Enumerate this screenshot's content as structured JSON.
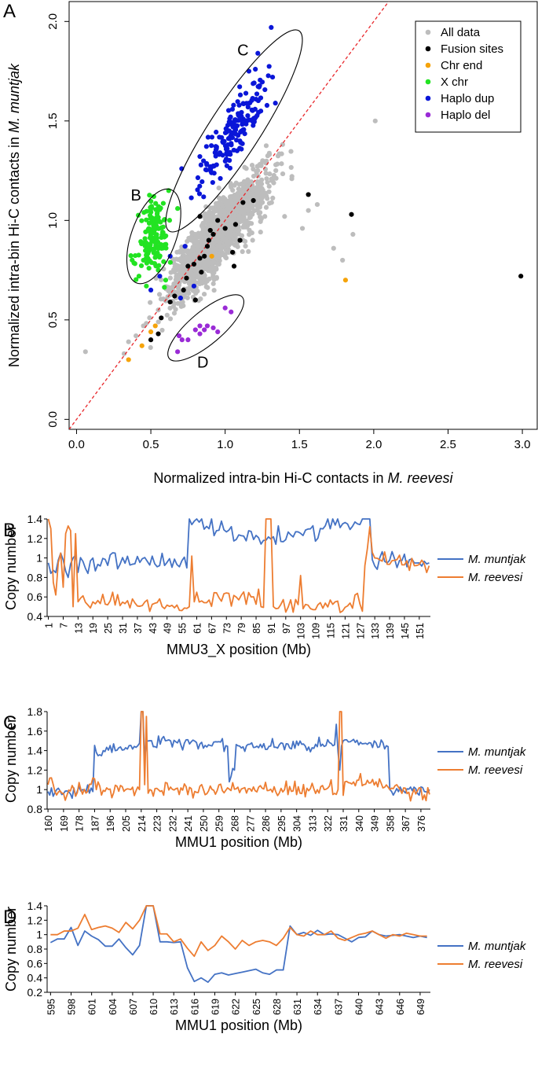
{
  "chart_data": [
    {
      "type": "scatter",
      "panel_label": "A",
      "xlabel_prefix": "Normalized intra-bin Hi-C contacts in ",
      "xlabel_species": "M. reevesi",
      "ylabel_prefix": "Normalized intra-bin Hi-C contacts in ",
      "ylabel_species": "M. muntjak",
      "xlim": [
        -0.05,
        3.1
      ],
      "ylim": [
        -0.05,
        2.1
      ],
      "xticks": [
        0.0,
        0.5,
        1.0,
        1.5,
        2.0,
        2.5,
        3.0
      ],
      "yticks": [
        0.0,
        0.5,
        1.0,
        1.5,
        2.0
      ],
      "xtick_labels": [
        "0.0",
        "0.5",
        "1.0",
        "1.5",
        "2.0",
        "2.5",
        "3.0"
      ],
      "ytick_labels": [
        "0.0",
        "0.5",
        "1.0",
        "1.5",
        "2.0"
      ],
      "diagonal": "y = x",
      "legend": [
        {
          "label": "All data",
          "color": "#bdbdbd"
        },
        {
          "label": "Fusion sites",
          "color": "#000000"
        },
        {
          "label": "Chr end",
          "color": "#f5a30a"
        },
        {
          "label": "X chr",
          "color": "#22e322"
        },
        {
          "label": "Haplo dup",
          "color": "#0a16d8"
        },
        {
          "label": "Haplo del",
          "color": "#9a2bd6"
        }
      ],
      "annotations": [
        "B",
        "C",
        "D"
      ],
      "series": [
        {
          "name": "All data (main cluster)",
          "cluster": {
            "cx": 0.95,
            "cy": 0.92,
            "sx": 0.16,
            "rho": 0.86,
            "ratio": 0.95,
            "n": 1500
          },
          "points": [
            [
              0.06,
              0.34
            ],
            [
              0.32,
              0.33
            ],
            [
              0.35,
              0.39
            ],
            [
              0.4,
              0.42
            ],
            [
              0.45,
              0.47
            ],
            [
              0.55,
              0.55
            ],
            [
              0.6,
              0.6
            ],
            [
              0.65,
              0.64
            ],
            [
              1.56,
              1.05
            ],
            [
              1.62,
              1.08
            ],
            [
              1.73,
              0.86
            ],
            [
              1.79,
              0.8
            ],
            [
              1.86,
              0.93
            ],
            [
              2.01,
              1.5
            ],
            [
              1.52,
              0.96
            ],
            [
              1.4,
              1.02
            ]
          ]
        },
        {
          "name": "Fusion sites",
          "points": [
            [
              0.5,
              0.4
            ],
            [
              0.55,
              0.43
            ],
            [
              0.57,
              0.51
            ],
            [
              0.63,
              0.59
            ],
            [
              0.66,
              0.62
            ],
            [
              0.72,
              0.65
            ],
            [
              0.74,
              0.71
            ],
            [
              0.75,
              0.77
            ],
            [
              0.8,
              0.6
            ],
            [
              0.79,
              0.78
            ],
            [
              0.83,
              0.81
            ],
            [
              0.84,
              0.74
            ],
            [
              0.86,
              0.82
            ],
            [
              0.88,
              0.87
            ],
            [
              0.89,
              0.9
            ],
            [
              0.9,
              0.95
            ],
            [
              0.92,
              0.93
            ],
            [
              0.95,
              1.0
            ],
            [
              1.0,
              0.96
            ],
            [
              1.06,
              0.77
            ],
            [
              1.05,
              0.84
            ],
            [
              1.07,
              0.98
            ],
            [
              1.1,
              0.9
            ],
            [
              0.83,
              1.02
            ],
            [
              1.12,
              1.09
            ],
            [
              1.19,
              1.1
            ],
            [
              1.56,
              1.13
            ],
            [
              1.85,
              1.03
            ],
            [
              2.99,
              0.72
            ]
          ]
        },
        {
          "name": "Chr end",
          "points": [
            [
              0.35,
              0.3
            ],
            [
              0.44,
              0.37
            ],
            [
              0.5,
              0.44
            ],
            [
              0.53,
              0.47
            ],
            [
              0.91,
              0.82
            ],
            [
              1.81,
              0.7
            ]
          ]
        },
        {
          "name": "X chr",
          "cluster": {
            "cx": 0.52,
            "cy": 0.91,
            "sx": 0.05,
            "sy": 0.09,
            "rho": 0.2,
            "n": 150
          },
          "points": [
            [
              0.42,
              0.72
            ],
            [
              0.47,
              0.67
            ],
            [
              0.55,
              0.75
            ],
            [
              0.6,
              0.7
            ],
            [
              0.52,
              1.12
            ],
            [
              0.62,
              1.15
            ],
            [
              0.68,
              1.06
            ],
            [
              0.45,
              0.8
            ]
          ]
        },
        {
          "name": "Haplo dup",
          "cluster": {
            "cx": 1.06,
            "cy": 1.45,
            "sx": 0.12,
            "sy": 0.13,
            "rho": 0.85,
            "n": 170
          },
          "points": [
            [
              0.5,
              0.65
            ],
            [
              0.56,
              0.72
            ],
            [
              0.63,
              0.82
            ],
            [
              0.73,
              0.87
            ],
            [
              0.79,
              0.67
            ],
            [
              0.7,
              0.61
            ],
            [
              1.31,
              1.97
            ],
            [
              0.9,
              1.27
            ],
            [
              1.22,
              1.84
            ],
            [
              1.16,
              1.75
            ]
          ]
        },
        {
          "name": "Haplo del",
          "points": [
            [
              0.68,
              0.34
            ],
            [
              0.69,
              0.42
            ],
            [
              0.71,
              0.4
            ],
            [
              0.75,
              0.4
            ],
            [
              0.8,
              0.45
            ],
            [
              0.83,
              0.43
            ],
            [
              0.86,
              0.45
            ],
            [
              0.88,
              0.47
            ],
            [
              0.92,
              0.46
            ],
            [
              0.95,
              0.44
            ],
            [
              1.0,
              0.56
            ],
            [
              1.04,
              0.54
            ],
            [
              0.83,
              0.47
            ]
          ]
        }
      ]
    },
    {
      "type": "line",
      "panel_label": "B",
      "xlabel": "MMU3_X position (Mb)",
      "ylabel": "Copy number",
      "ylim": [
        0.4,
        1.4
      ],
      "yticks": [
        0.4,
        0.6,
        0.8,
        1.0,
        1.2,
        1.4
      ],
      "ytick_labels": [
        "0.4",
        "0.6",
        "0.8",
        "1",
        "1.2",
        "1.4"
      ],
      "x_start": 1,
      "x_step": 1,
      "n": 155,
      "tick_every": 6,
      "legend": [
        "M. muntjak",
        "M. reevesi"
      ],
      "series": [
        {
          "name": "M. muntjak",
          "color": "#4472c4",
          "base": 0.95,
          "noise": 0.05,
          "anchors": [
            [
              1,
              0.95
            ],
            [
              4,
              0.85
            ],
            [
              6,
              1.05
            ],
            [
              9,
              0.8
            ],
            [
              11,
              1.0
            ],
            [
              58,
              1.4
            ],
            [
              88,
              1.18
            ],
            [
              120,
              1.35
            ],
            [
              131,
              1.4
            ],
            [
              135,
              1.0
            ],
            [
              155,
              0.95
            ]
          ]
        },
        {
          "name": "M. reevesi",
          "color": "#ed7d31",
          "base": 0.52,
          "noise": 0.04,
          "anchors": [
            [
              1,
              1.4
            ],
            [
              2,
              1.3
            ],
            [
              3,
              0.75
            ],
            [
              4,
              0.62
            ],
            [
              5,
              0.95
            ],
            [
              6,
              1.05
            ],
            [
              7,
              0.7
            ],
            [
              8,
              1.25
            ],
            [
              10,
              1.28
            ],
            [
              11,
              0.5
            ],
            [
              12,
              1.25
            ],
            [
              13,
              0.55
            ],
            [
              58,
              0.5
            ],
            [
              59,
              1.02
            ],
            [
              60,
              0.55
            ],
            [
              83,
              0.6
            ],
            [
              86,
              0.68
            ],
            [
              87,
              0.5
            ],
            [
              89,
              1.4
            ],
            [
              90,
              1.4
            ],
            [
              91,
              1.4
            ],
            [
              92,
              0.5
            ],
            [
              103,
              0.82
            ],
            [
              125,
              0.62
            ],
            [
              129,
              0.92
            ],
            [
              131,
              1.32
            ],
            [
              133,
              1.0
            ],
            [
              155,
              0.92
            ]
          ]
        }
      ]
    },
    {
      "type": "line",
      "panel_label": "C",
      "xlabel": "MMU1 position (Mb)",
      "ylabel": "Copy number",
      "ylim": [
        0.8,
        1.8
      ],
      "yticks": [
        0.8,
        1.0,
        1.2,
        1.4,
        1.6,
        1.8
      ],
      "ytick_labels": [
        "0.8",
        "1",
        "1.2",
        "1.4",
        "1.6",
        "1.8"
      ],
      "x_start": 160,
      "x_step": 1,
      "n": 222,
      "tick_every": 9,
      "legend": [
        "M. muntjak",
        "M. reevesi"
      ],
      "series": [
        {
          "name": "M. muntjak",
          "color": "#4472c4",
          "base": 1.45,
          "noise": 0.03,
          "anchors": [
            [
              160,
              0.98
            ],
            [
              186,
              0.98
            ],
            [
              188,
              1.38
            ],
            [
              212,
              1.45
            ],
            [
              214,
              1.8
            ],
            [
              215,
              1.8
            ],
            [
              216,
              1.3
            ],
            [
              217,
              1.5
            ],
            [
              263,
              1.45
            ],
            [
              265,
              1.08
            ],
            [
              268,
              1.2
            ],
            [
              270,
              1.45
            ],
            [
              325,
              1.45
            ],
            [
              327,
              1.67
            ],
            [
              329,
              1.2
            ],
            [
              331,
              1.5
            ],
            [
              356,
              1.45
            ],
            [
              358,
              1.0
            ],
            [
              381,
              1.0
            ]
          ]
        },
        {
          "name": "M. reevesi",
          "color": "#ed7d31",
          "base": 1.0,
          "noise": 0.035,
          "anchors": [
            [
              160,
              1.05
            ],
            [
              162,
              1.12
            ],
            [
              164,
              0.98
            ],
            [
              183,
              0.98
            ],
            [
              186,
              1.12
            ],
            [
              188,
              1.0
            ],
            [
              213,
              1.0
            ],
            [
              214,
              1.8
            ],
            [
              215,
              1.8
            ],
            [
              216,
              1.05
            ],
            [
              217,
              1.75
            ],
            [
              219,
              1.0
            ],
            [
              328,
              1.0
            ],
            [
              329,
              1.8
            ],
            [
              330,
              1.8
            ],
            [
              332,
              1.08
            ],
            [
              350,
              1.08
            ],
            [
              358,
              1.0
            ],
            [
              381,
              0.95
            ]
          ]
        }
      ]
    },
    {
      "type": "line",
      "panel_label": "D",
      "xlabel": "MMU1 position (Mb)",
      "ylabel": "Copy number",
      "ylim": [
        0.2,
        1.4
      ],
      "yticks": [
        0.2,
        0.4,
        0.6,
        0.8,
        1.0,
        1.2,
        1.4
      ],
      "ytick_labels": [
        "0.2",
        "0.4",
        "0.6",
        "0.8",
        "1",
        "1.2",
        "1.4"
      ],
      "x_start": 595,
      "x_step": 1,
      "n": 56,
      "tick_every": 3,
      "legend": [
        "M. muntjak",
        "M. reevesi"
      ],
      "series": [
        {
          "name": "M. muntjak",
          "color": "#4472c4",
          "values": [
            0.89,
            0.94,
            0.94,
            1.1,
            0.85,
            1.05,
            0.98,
            0.93,
            0.84,
            0.84,
            0.94,
            0.82,
            0.72,
            0.85,
            1.4,
            1.4,
            0.9,
            0.9,
            0.89,
            0.9,
            0.54,
            0.35,
            0.4,
            0.34,
            0.45,
            0.47,
            0.44,
            0.46,
            0.48,
            0.5,
            0.52,
            0.47,
            0.45,
            0.51,
            0.51,
            1.12,
            1.0,
            1.03,
            0.99,
            1.06,
            1.0,
            1.01,
            1.0,
            0.95,
            0.9,
            0.96,
            0.97,
            1.05,
            1.0,
            0.98,
            0.99,
            1.0,
            0.98,
            0.96,
            0.98,
            0.96
          ]
        },
        {
          "name": "M. reevesi",
          "color": "#ed7d31",
          "values": [
            1.0,
            1.0,
            1.05,
            1.05,
            1.09,
            1.28,
            1.07,
            1.1,
            1.12,
            1.09,
            1.03,
            1.17,
            1.08,
            1.2,
            1.4,
            1.4,
            1.01,
            1.01,
            0.9,
            0.94,
            0.81,
            0.7,
            0.9,
            0.78,
            0.85,
            0.98,
            0.9,
            0.8,
            0.92,
            0.85,
            0.9,
            0.92,
            0.9,
            0.85,
            0.95,
            1.1,
            1.0,
            0.98,
            1.05,
            1.0,
            1.0,
            1.05,
            0.95,
            0.92,
            0.96,
            1.0,
            1.02,
            1.05,
            1.0,
            0.95,
            1.0,
            0.98,
            1.02,
            1.0,
            0.98,
            0.98
          ]
        }
      ]
    }
  ]
}
